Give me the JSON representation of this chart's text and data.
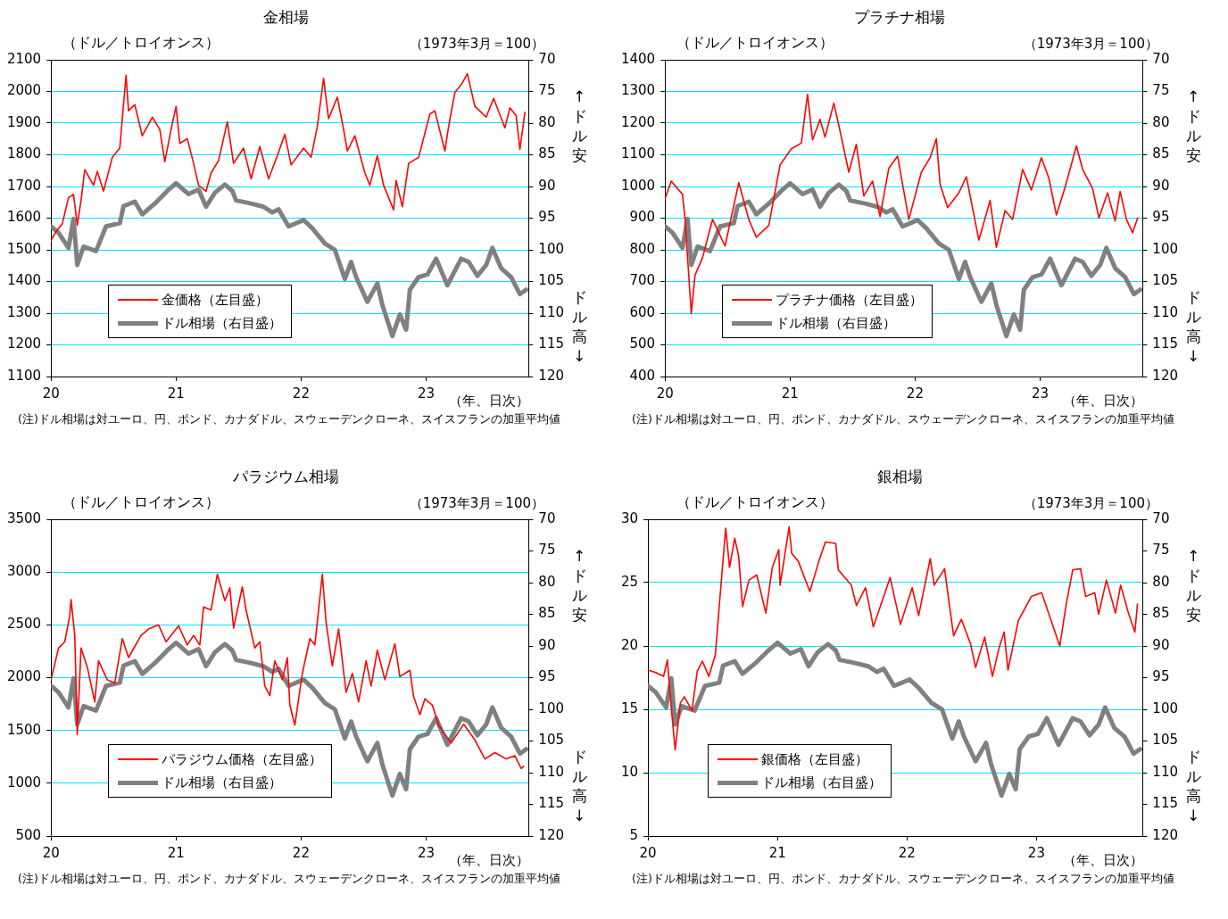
{
  "chart_data": [
    {
      "type": "line",
      "title": "金相場",
      "ylabel": "（ドル／トロイオンス）",
      "y2label": "（1973年3月＝100）",
      "xlabel": "（年、日次）",
      "annotations": [
        "↑ドル安",
        "ドル高↓",
        "(注)ドル相場は対ユーロ、円、ポンド、カナダドル、スウェーデンクローネ、スイスフランの加重平均値"
      ],
      "xlim": [
        2020,
        2023.82
      ],
      "xticks": [
        {
          "value": 2020,
          "label": "20"
        },
        {
          "value": 2021,
          "label": "21"
        },
        {
          "value": 2022,
          "label": "22"
        },
        {
          "value": 2023,
          "label": "23"
        }
      ],
      "ylim": [
        1100,
        2100
      ],
      "yticks": [
        1100,
        1200,
        1300,
        1400,
        1500,
        1600,
        1700,
        1800,
        1900,
        2000,
        2100
      ],
      "y2lim": [
        120,
        70
      ],
      "y2ticks": [
        70,
        75,
        80,
        85,
        90,
        95,
        100,
        105,
        110,
        115,
        120
      ],
      "grid": "y",
      "legend": "bottom left",
      "marker": "none",
      "series": [
        {
          "name": "金価格（左目盛）",
          "color": "#ff0000",
          "x": [
            2020.0,
            2020.04,
            2020.09,
            2020.14,
            2020.18,
            2020.21,
            2020.24,
            2020.27,
            2020.34,
            2020.37,
            2020.42,
            2020.49,
            2020.55,
            2020.6,
            2020.62,
            2020.67,
            2020.73,
            2020.81,
            2020.87,
            2020.91,
            2020.96,
            2021.0,
            2021.03,
            2021.09,
            2021.14,
            2021.18,
            2021.24,
            2021.28,
            2021.34,
            2021.41,
            2021.46,
            2021.54,
            2021.6,
            2021.67,
            2021.74,
            2021.81,
            2021.87,
            2021.92,
            2022.02,
            2022.08,
            2022.13,
            2022.18,
            2022.22,
            2022.29,
            2022.34,
            2022.37,
            2022.43,
            2022.51,
            2022.55,
            2022.61,
            2022.66,
            2022.74,
            2022.76,
            2022.81,
            2022.86,
            2022.94,
            2023.03,
            2023.07,
            2023.15,
            2023.18,
            2023.23,
            2023.28,
            2023.33,
            2023.39,
            2023.48,
            2023.54,
            2023.63,
            2023.67,
            2023.72,
            2023.75,
            2023.79
          ],
          "values": [
            1529,
            1558,
            1582,
            1665,
            1675,
            1578,
            1656,
            1753,
            1704,
            1748,
            1685,
            1792,
            1821,
            2051,
            1939,
            1958,
            1860,
            1919,
            1880,
            1778,
            1880,
            1953,
            1836,
            1851,
            1773,
            1704,
            1685,
            1743,
            1782,
            1904,
            1773,
            1821,
            1724,
            1826,
            1724,
            1797,
            1865,
            1768,
            1821,
            1792,
            1890,
            2041,
            1914,
            1982,
            1880,
            1812,
            1860,
            1743,
            1704,
            1797,
            1704,
            1626,
            1719,
            1636,
            1773,
            1792,
            1929,
            1939,
            1812,
            1890,
            1997,
            2021,
            2056,
            1953,
            1919,
            1978,
            1885,
            1948,
            1924,
            1817,
            1934
          ]
        },
        {
          "name": "ドル相場（右目盛）",
          "color": "#808080",
          "axis": "y2",
          "x": [
            2020.0,
            2020.06,
            2020.14,
            2020.18,
            2020.21,
            2020.26,
            2020.36,
            2020.44,
            2020.55,
            2020.58,
            2020.67,
            2020.73,
            2020.83,
            2020.93,
            2021.0,
            2021.1,
            2021.18,
            2021.24,
            2021.31,
            2021.39,
            2021.45,
            2021.48,
            2021.6,
            2021.7,
            2021.77,
            2021.82,
            2021.9,
            2022.02,
            2022.09,
            2022.19,
            2022.27,
            2022.35,
            2022.4,
            2022.44,
            2022.53,
            2022.61,
            2022.65,
            2022.73,
            2022.79,
            2022.84,
            2022.87,
            2022.94,
            2023.01,
            2023.08,
            2023.17,
            2023.28,
            2023.34,
            2023.41,
            2023.48,
            2023.53,
            2023.6,
            2023.68,
            2023.75,
            2023.8
          ],
          "values": [
            96.3,
            97.3,
            99.7,
            95.1,
            102.4,
            99.5,
            100.2,
            96.3,
            95.8,
            93.1,
            92.4,
            94.4,
            92.7,
            90.7,
            89.5,
            91.2,
            90.5,
            93.2,
            91.0,
            89.7,
            90.7,
            92.2,
            92.7,
            93.2,
            94.1,
            93.6,
            96.3,
            95.3,
            96.6,
            99.0,
            100.0,
            104.6,
            101.9,
            104.3,
            108.2,
            105.3,
            108.7,
            113.6,
            110.2,
            112.6,
            106.3,
            104.3,
            103.9,
            101.4,
            105.6,
            101.4,
            101.9,
            104.1,
            102.4,
            99.7,
            102.9,
            104.3,
            107.0,
            106.3
          ]
        }
      ]
    },
    {
      "type": "line",
      "title": "プラチナ相場",
      "ylabel": "（ドル／トロイオンス）",
      "y2label": "（1973年3月＝100）",
      "xlabel": "（年、日次）",
      "annotations": [
        "↑ドル安",
        "ドル高↓",
        "(注)ドル相場は対ユーロ、円、ポンド、カナダドル、スウェーデンクローネ、スイスフランの加重平均値"
      ],
      "xlim": [
        2020,
        2023.82
      ],
      "xticks": [
        {
          "value": 2020,
          "label": "20"
        },
        {
          "value": 2021,
          "label": "21"
        },
        {
          "value": 2022,
          "label": "22"
        },
        {
          "value": 2023,
          "label": "23"
        }
      ],
      "ylim": [
        400,
        1400
      ],
      "yticks": [
        400,
        500,
        600,
        700,
        800,
        900,
        1000,
        1100,
        1200,
        1300,
        1400
      ],
      "y2lim": [
        120,
        70
      ],
      "y2ticks": [
        70,
        75,
        80,
        85,
        90,
        95,
        100,
        105,
        110,
        115,
        120
      ],
      "grid": "y",
      "legend": "bottom left",
      "marker": "none",
      "series": [
        {
          "name": "プラチナ価格（左目盛）",
          "color": "#ff0000",
          "x": [
            2020.0,
            2020.05,
            2020.14,
            2020.16,
            2020.21,
            2020.24,
            2020.3,
            2020.38,
            2020.48,
            2020.59,
            2020.67,
            2020.73,
            2020.83,
            2020.92,
            2021.01,
            2021.09,
            2021.14,
            2021.18,
            2021.24,
            2021.28,
            2021.35,
            2021.39,
            2021.47,
            2021.53,
            2021.59,
            2021.66,
            2021.72,
            2021.79,
            2021.86,
            2021.95,
            2022.05,
            2022.12,
            2022.17,
            2022.2,
            2022.26,
            2022.35,
            2022.41,
            2022.51,
            2022.6,
            2022.65,
            2022.72,
            2022.78,
            2022.86,
            2022.93,
            2023.01,
            2023.07,
            2023.13,
            2023.2,
            2023.29,
            2023.34,
            2023.42,
            2023.47,
            2023.54,
            2023.6,
            2023.64,
            2023.69,
            2023.74,
            2023.78
          ],
          "values": [
            961,
            1017,
            975,
            896,
            599,
            720,
            775,
            896,
            812,
            1012,
            896,
            840,
            877,
            1068,
            1119,
            1137,
            1291,
            1147,
            1212,
            1156,
            1263,
            1193,
            1045,
            1133,
            970,
            1017,
            905,
            1058,
            1096,
            896,
            1045,
            1091,
            1151,
            1007,
            933,
            980,
            1031,
            831,
            956,
            808,
            924,
            896,
            1054,
            989,
            1091,
            1026,
            910,
            998,
            1128,
            1054,
            993,
            901,
            980,
            891,
            984,
            896,
            854,
            901
          ]
        },
        {
          "name": "ドル相場（右目盛）",
          "color": "#808080",
          "axis": "y2",
          "x": [
            2020.0,
            2020.06,
            2020.14,
            2020.18,
            2020.21,
            2020.26,
            2020.36,
            2020.44,
            2020.55,
            2020.58,
            2020.67,
            2020.73,
            2020.83,
            2020.93,
            2021.0,
            2021.1,
            2021.18,
            2021.24,
            2021.31,
            2021.39,
            2021.45,
            2021.48,
            2021.6,
            2021.7,
            2021.77,
            2021.82,
            2021.9,
            2022.02,
            2022.09,
            2022.19,
            2022.27,
            2022.35,
            2022.4,
            2022.44,
            2022.53,
            2022.61,
            2022.65,
            2022.73,
            2022.79,
            2022.84,
            2022.87,
            2022.94,
            2023.01,
            2023.08,
            2023.17,
            2023.28,
            2023.34,
            2023.41,
            2023.48,
            2023.53,
            2023.6,
            2023.68,
            2023.75,
            2023.8
          ],
          "values": [
            96.3,
            97.3,
            99.7,
            95.1,
            102.4,
            99.5,
            100.2,
            96.3,
            95.8,
            93.1,
            92.4,
            94.4,
            92.7,
            90.7,
            89.5,
            91.2,
            90.5,
            93.2,
            91.0,
            89.7,
            90.7,
            92.2,
            92.7,
            93.2,
            94.1,
            93.6,
            96.3,
            95.3,
            96.6,
            99.0,
            100.0,
            104.6,
            101.9,
            104.3,
            108.2,
            105.3,
            108.7,
            113.6,
            110.2,
            112.6,
            106.3,
            104.3,
            103.9,
            101.4,
            105.6,
            101.4,
            101.9,
            104.1,
            102.4,
            99.7,
            102.9,
            104.3,
            107.0,
            106.3
          ]
        }
      ]
    },
    {
      "type": "line",
      "title": "パラジウム相場",
      "ylabel": "（ドル／トロイオンス）",
      "y2label": "（1973年3月＝100）",
      "xlabel": "（年、日次）",
      "annotations": [
        "↑ドル安",
        "ドル高↓",
        "(注)ドル相場は対ユーロ、円、ポンド、カナダドル、スウェーデンクローネ、スイスフランの加重平均値"
      ],
      "xlim": [
        2020,
        2023.82
      ],
      "xticks": [
        {
          "value": 2020,
          "label": "20"
        },
        {
          "value": 2021,
          "label": "21"
        },
        {
          "value": 2022,
          "label": "22"
        },
        {
          "value": 2023,
          "label": "23"
        }
      ],
      "ylim": [
        500,
        3500
      ],
      "yticks": [
        500,
        1000,
        1500,
        2000,
        2500,
        3000,
        3500
      ],
      "y2lim": [
        120,
        70
      ],
      "y2ticks": [
        70,
        75,
        80,
        85,
        90,
        95,
        100,
        105,
        110,
        115,
        120
      ],
      "grid": "y",
      "legend": "bottom left",
      "marker": "none",
      "series": [
        {
          "name": "パラジウム価格（左目盛）",
          "color": "#ff0000",
          "x": [
            2020.0,
            2020.06,
            2020.11,
            2020.15,
            2020.16,
            2020.19,
            2020.21,
            2020.24,
            2020.29,
            2020.35,
            2020.38,
            2020.45,
            2020.51,
            2020.57,
            2020.62,
            2020.72,
            2020.78,
            2020.86,
            2020.92,
            2021.02,
            2021.09,
            2021.14,
            2021.19,
            2021.22,
            2021.28,
            2021.33,
            2021.39,
            2021.43,
            2021.46,
            2021.53,
            2021.56,
            2021.63,
            2021.67,
            2021.71,
            2021.75,
            2021.79,
            2021.85,
            2021.89,
            2021.91,
            2021.95,
            2022.01,
            2022.07,
            2022.11,
            2022.17,
            2022.2,
            2022.25,
            2022.3,
            2022.36,
            2022.41,
            2022.46,
            2022.52,
            2022.56,
            2022.61,
            2022.67,
            2022.75,
            2022.79,
            2022.87,
            2022.9,
            2022.95,
            2022.99,
            2023.05,
            2023.1,
            2023.2,
            2023.3,
            2023.39,
            2023.47,
            2023.55,
            2023.64,
            2023.71,
            2023.76,
            2023.78
          ],
          "values": [
            1980,
            2280,
            2340,
            2590,
            2740,
            2400,
            1460,
            2280,
            2100,
            1770,
            2160,
            1980,
            1950,
            2370,
            2190,
            2400,
            2460,
            2500,
            2340,
            2490,
            2310,
            2400,
            2310,
            2670,
            2640,
            2980,
            2730,
            2850,
            2470,
            2860,
            2640,
            2280,
            2340,
            1920,
            1830,
            2160,
            1980,
            2190,
            1740,
            1550,
            2040,
            2370,
            2310,
            2980,
            2520,
            2110,
            2460,
            1860,
            2040,
            1770,
            2160,
            1920,
            2260,
            1980,
            2320,
            2010,
            2070,
            1820,
            1650,
            1800,
            1740,
            1550,
            1380,
            1560,
            1410,
            1230,
            1290,
            1230,
            1260,
            1140,
            1160
          ]
        },
        {
          "name": "ドル相場（右目盛）",
          "color": "#808080",
          "axis": "y2",
          "x": [
            2020.0,
            2020.06,
            2020.14,
            2020.18,
            2020.21,
            2020.26,
            2020.36,
            2020.44,
            2020.55,
            2020.58,
            2020.67,
            2020.73,
            2020.83,
            2020.93,
            2021.0,
            2021.1,
            2021.18,
            2021.24,
            2021.31,
            2021.39,
            2021.45,
            2021.48,
            2021.6,
            2021.7,
            2021.77,
            2021.82,
            2021.9,
            2022.02,
            2022.09,
            2022.19,
            2022.27,
            2022.35,
            2022.4,
            2022.44,
            2022.53,
            2022.61,
            2022.65,
            2022.73,
            2022.79,
            2022.84,
            2022.87,
            2022.94,
            2023.01,
            2023.08,
            2023.17,
            2023.28,
            2023.34,
            2023.41,
            2023.48,
            2023.53,
            2023.6,
            2023.68,
            2023.75,
            2023.8
          ],
          "values": [
            96.3,
            97.3,
            99.7,
            95.1,
            102.4,
            99.5,
            100.2,
            96.3,
            95.8,
            93.1,
            92.4,
            94.4,
            92.7,
            90.7,
            89.5,
            91.2,
            90.5,
            93.2,
            91.0,
            89.7,
            90.7,
            92.2,
            92.7,
            93.2,
            94.1,
            93.6,
            96.3,
            95.3,
            96.6,
            99.0,
            100.0,
            104.6,
            101.9,
            104.3,
            108.2,
            105.3,
            108.7,
            113.6,
            110.2,
            112.6,
            106.3,
            104.3,
            103.9,
            101.4,
            105.6,
            101.4,
            101.9,
            104.1,
            102.4,
            99.7,
            102.9,
            104.3,
            107.0,
            106.3
          ]
        }
      ]
    },
    {
      "type": "line",
      "title": "銀相場",
      "ylabel": "（ドル／トロイオンス）",
      "y2label": "（1973年3月＝100）",
      "xlabel": "（年、日次）",
      "annotations": [
        "↑ドル安",
        "ドル高↓",
        "(注)ドル相場は対ユーロ、円、ポンド、カナダドル、スウェーデンクローネ、スイスフランの加重平均値"
      ],
      "xlim": [
        2020,
        2023.82
      ],
      "xticks": [
        {
          "value": 2020,
          "label": "20"
        },
        {
          "value": 2021,
          "label": "21"
        },
        {
          "value": 2022,
          "label": "22"
        },
        {
          "value": 2023,
          "label": "23"
        }
      ],
      "ylim": [
        5,
        30
      ],
      "yticks": [
        5,
        10,
        15,
        20,
        25,
        30
      ],
      "y2lim": [
        120,
        70
      ],
      "y2ticks": [
        70,
        75,
        80,
        85,
        90,
        95,
        100,
        105,
        110,
        115,
        120
      ],
      "grid": "y",
      "legend": "bottom left",
      "marker": "none",
      "series": [
        {
          "name": "銀価格（左目盛）",
          "color": "#ff0000",
          "x": [
            2020.0,
            2020.06,
            2020.12,
            2020.15,
            2020.17,
            2020.21,
            2020.25,
            2020.28,
            2020.34,
            2020.38,
            2020.42,
            2020.47,
            2020.52,
            2020.55,
            2020.6,
            2020.63,
            2020.67,
            2020.7,
            2020.73,
            2020.78,
            2020.84,
            2020.91,
            2020.96,
            2021.01,
            2021.02,
            2021.09,
            2021.11,
            2021.16,
            2021.25,
            2021.32,
            2021.37,
            2021.45,
            2021.47,
            2021.57,
            2021.61,
            2021.68,
            2021.72,
            2021.74,
            2021.87,
            2021.95,
            2022.04,
            2022.09,
            2022.18,
            2022.21,
            2022.29,
            2022.36,
            2022.42,
            2022.49,
            2022.53,
            2022.6,
            2022.66,
            2022.71,
            2022.75,
            2022.78,
            2022.86,
            2022.96,
            2023.04,
            2023.1,
            2023.18,
            2023.23,
            2023.28,
            2023.34,
            2023.38,
            2023.45,
            2023.48,
            2023.54,
            2023.61,
            2023.65,
            2023.71,
            2023.76,
            2023.78
          ],
          "values": [
            18.1,
            17.9,
            17.6,
            18.9,
            16.2,
            11.8,
            15.5,
            16.0,
            14.9,
            18.0,
            18.8,
            17.6,
            19.3,
            23.1,
            29.3,
            26.2,
            28.5,
            27.1,
            23.1,
            25.2,
            25.6,
            22.6,
            26.2,
            27.6,
            24.8,
            29.4,
            27.3,
            26.7,
            24.3,
            26.7,
            28.2,
            28.1,
            26.0,
            24.8,
            23.2,
            24.6,
            22.6,
            21.5,
            25.4,
            21.7,
            24.6,
            22.4,
            26.9,
            24.8,
            26.1,
            20.8,
            22.1,
            20.2,
            18.3,
            20.7,
            17.6,
            19.8,
            21.1,
            18.1,
            22.0,
            23.9,
            24.2,
            22.4,
            20.0,
            23.3,
            26.0,
            26.1,
            23.9,
            24.2,
            22.5,
            25.2,
            22.6,
            24.8,
            22.6,
            21.1,
            23.3
          ]
        },
        {
          "name": "ドル相場（右目盛）",
          "color": "#808080",
          "axis": "y2",
          "x": [
            2020.0,
            2020.06,
            2020.14,
            2020.18,
            2020.21,
            2020.26,
            2020.36,
            2020.44,
            2020.55,
            2020.58,
            2020.67,
            2020.73,
            2020.83,
            2020.93,
            2021.0,
            2021.1,
            2021.18,
            2021.24,
            2021.31,
            2021.39,
            2021.45,
            2021.48,
            2021.6,
            2021.7,
            2021.77,
            2021.82,
            2021.9,
            2022.02,
            2022.09,
            2022.19,
            2022.27,
            2022.35,
            2022.4,
            2022.44,
            2022.53,
            2022.61,
            2022.65,
            2022.73,
            2022.79,
            2022.84,
            2022.87,
            2022.94,
            2023.01,
            2023.08,
            2023.17,
            2023.28,
            2023.34,
            2023.41,
            2023.48,
            2023.53,
            2023.6,
            2023.68,
            2023.75,
            2023.8
          ],
          "values": [
            96.3,
            97.3,
            99.7,
            95.1,
            102.4,
            99.5,
            100.2,
            96.3,
            95.8,
            93.1,
            92.4,
            94.4,
            92.7,
            90.7,
            89.5,
            91.2,
            90.5,
            93.2,
            91.0,
            89.7,
            90.7,
            92.2,
            92.7,
            93.2,
            94.1,
            93.6,
            96.3,
            95.3,
            96.6,
            99.0,
            100.0,
            104.6,
            101.9,
            104.3,
            108.2,
            105.3,
            108.7,
            113.6,
            110.2,
            112.6,
            106.3,
            104.3,
            103.9,
            101.4,
            105.6,
            101.4,
            101.9,
            104.1,
            102.4,
            99.7,
            102.9,
            104.3,
            107.0,
            106.3
          ]
        }
      ]
    }
  ]
}
